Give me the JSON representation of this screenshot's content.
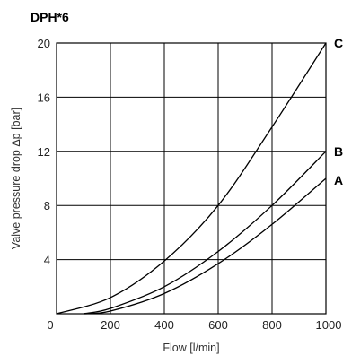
{
  "chart_data": {
    "type": "line",
    "title": "DPH*6",
    "xlabel": "Flow [l/min]",
    "ylabel": "Valve pressure drop  Δp [bar]",
    "xlim": [
      0,
      1000
    ],
    "ylim": [
      0,
      20
    ],
    "xticks": [
      "0",
      "200",
      "400",
      "600",
      "800",
      "1000"
    ],
    "yticks": [
      "4",
      "8",
      "12",
      "16",
      "20"
    ],
    "grid": true,
    "series": [
      {
        "name": "C",
        "x": [
          0,
          200,
          400,
          600,
          800,
          1000
        ],
        "y": [
          0,
          1.2,
          3.9,
          8.0,
          13.8,
          20.0
        ]
      },
      {
        "name": "B",
        "x": [
          100,
          200,
          400,
          600,
          800,
          1000
        ],
        "y": [
          0,
          0.4,
          2.0,
          4.6,
          8.0,
          12.0
        ]
      },
      {
        "name": "A",
        "x": [
          100,
          200,
          400,
          600,
          800,
          1000
        ],
        "y": [
          0,
          0.2,
          1.5,
          3.7,
          6.6,
          10.0
        ]
      }
    ]
  }
}
